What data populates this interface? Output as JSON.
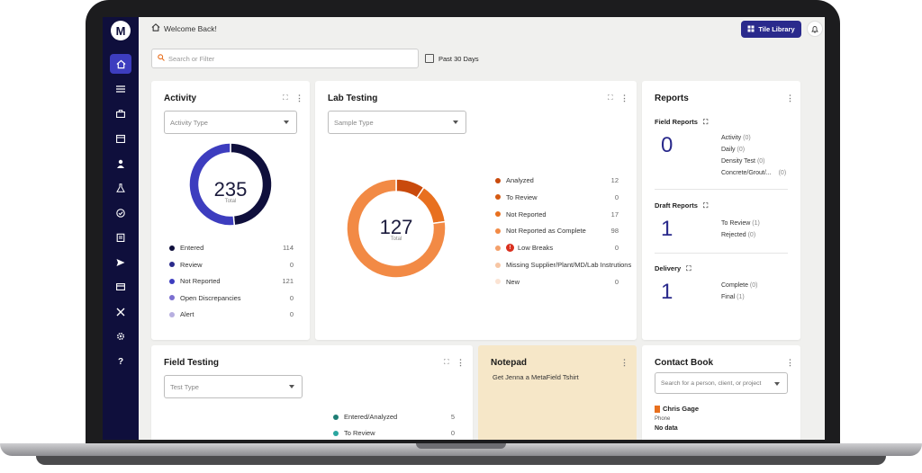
{
  "header": {
    "welcome": "Welcome Back!",
    "tile_library": "Tile Library"
  },
  "filters": {
    "search_placeholder": "Search or Filter",
    "date_range": "Past 30 Days"
  },
  "activity": {
    "title": "Activity",
    "select_placeholder": "Activity Type",
    "total": "235",
    "total_label": "Total",
    "items": [
      {
        "label": "Entered",
        "value": "114",
        "color": "#0f0f3c"
      },
      {
        "label": "Review",
        "value": "0",
        "color": "#2a2a8c"
      },
      {
        "label": "Not Reported",
        "value": "121",
        "color": "#3d3dbf"
      },
      {
        "label": "Open Discrepancies",
        "value": "0",
        "color": "#7b6fd0"
      },
      {
        "label": "Alert",
        "value": "0",
        "color": "#b7afe0"
      }
    ]
  },
  "lab_testing": {
    "title": "Lab Testing",
    "select_placeholder": "Sample Type",
    "total": "127",
    "total_label": "Total",
    "items": [
      {
        "label": "Analyzed",
        "value": "12",
        "color": "#c94a0c"
      },
      {
        "label": "To Review",
        "value": "0",
        "color": "#d55a12"
      },
      {
        "label": "Not Reported",
        "value": "17",
        "color": "#e8701f"
      },
      {
        "label": "Not Reported as Complete",
        "value": "98",
        "color": "#f28a45"
      },
      {
        "label": "Low Breaks",
        "value": "0",
        "color": "#f4a06a"
      },
      {
        "label": "Missing Supplier/Plant/MD/Lab Instrutions",
        "value": "",
        "color": "#f7c6a4"
      },
      {
        "label": "New",
        "value": "0",
        "color": "#fbe3d3"
      }
    ]
  },
  "reports": {
    "title": "Reports",
    "field": {
      "title": "Field Reports",
      "count": "0",
      "items": [
        {
          "label": "Activity",
          "count": "(0)"
        },
        {
          "label": "Daily",
          "count": "(0)"
        },
        {
          "label": "Density Test",
          "count": "(0)"
        },
        {
          "label": "Concrete/Grout/...",
          "count": "(0)"
        }
      ]
    },
    "draft": {
      "title": "Draft Reports",
      "count": "1",
      "items": [
        {
          "label": "To Review",
          "count": "(1)"
        },
        {
          "label": "Rejected",
          "count": "(0)"
        }
      ]
    },
    "delivery": {
      "title": "Delivery",
      "count": "1",
      "items": [
        {
          "label": "Complete",
          "count": "(0)"
        },
        {
          "label": "Final",
          "count": "(1)"
        }
      ]
    }
  },
  "field_testing": {
    "title": "Field Testing",
    "select_placeholder": "Test Type",
    "items": [
      {
        "label": "Entered/Analyzed",
        "value": "5",
        "color": "#1e7d74"
      },
      {
        "label": "To Review",
        "value": "0",
        "color": "#2aa6a0"
      }
    ]
  },
  "notepad": {
    "title": "Notepad",
    "text": "Get Jenna a MetaField Tshirt"
  },
  "contact_book": {
    "title": "Contact Book",
    "search_placeholder": "Search for a person, client, or project",
    "contact_name": "Chris Gage",
    "phone_label": "Phone",
    "phone_value": "No data"
  },
  "chart_data": [
    {
      "type": "pie",
      "title": "Activity",
      "categories": [
        "Entered",
        "Review",
        "Not Reported",
        "Open Discrepancies",
        "Alert"
      ],
      "values": [
        114,
        0,
        121,
        0,
        0
      ]
    },
    {
      "type": "pie",
      "title": "Lab Testing",
      "categories": [
        "Analyzed",
        "To Review",
        "Not Reported",
        "Not Reported as Complete",
        "Low Breaks",
        "New"
      ],
      "values": [
        12,
        0,
        17,
        98,
        0,
        0
      ]
    }
  ]
}
